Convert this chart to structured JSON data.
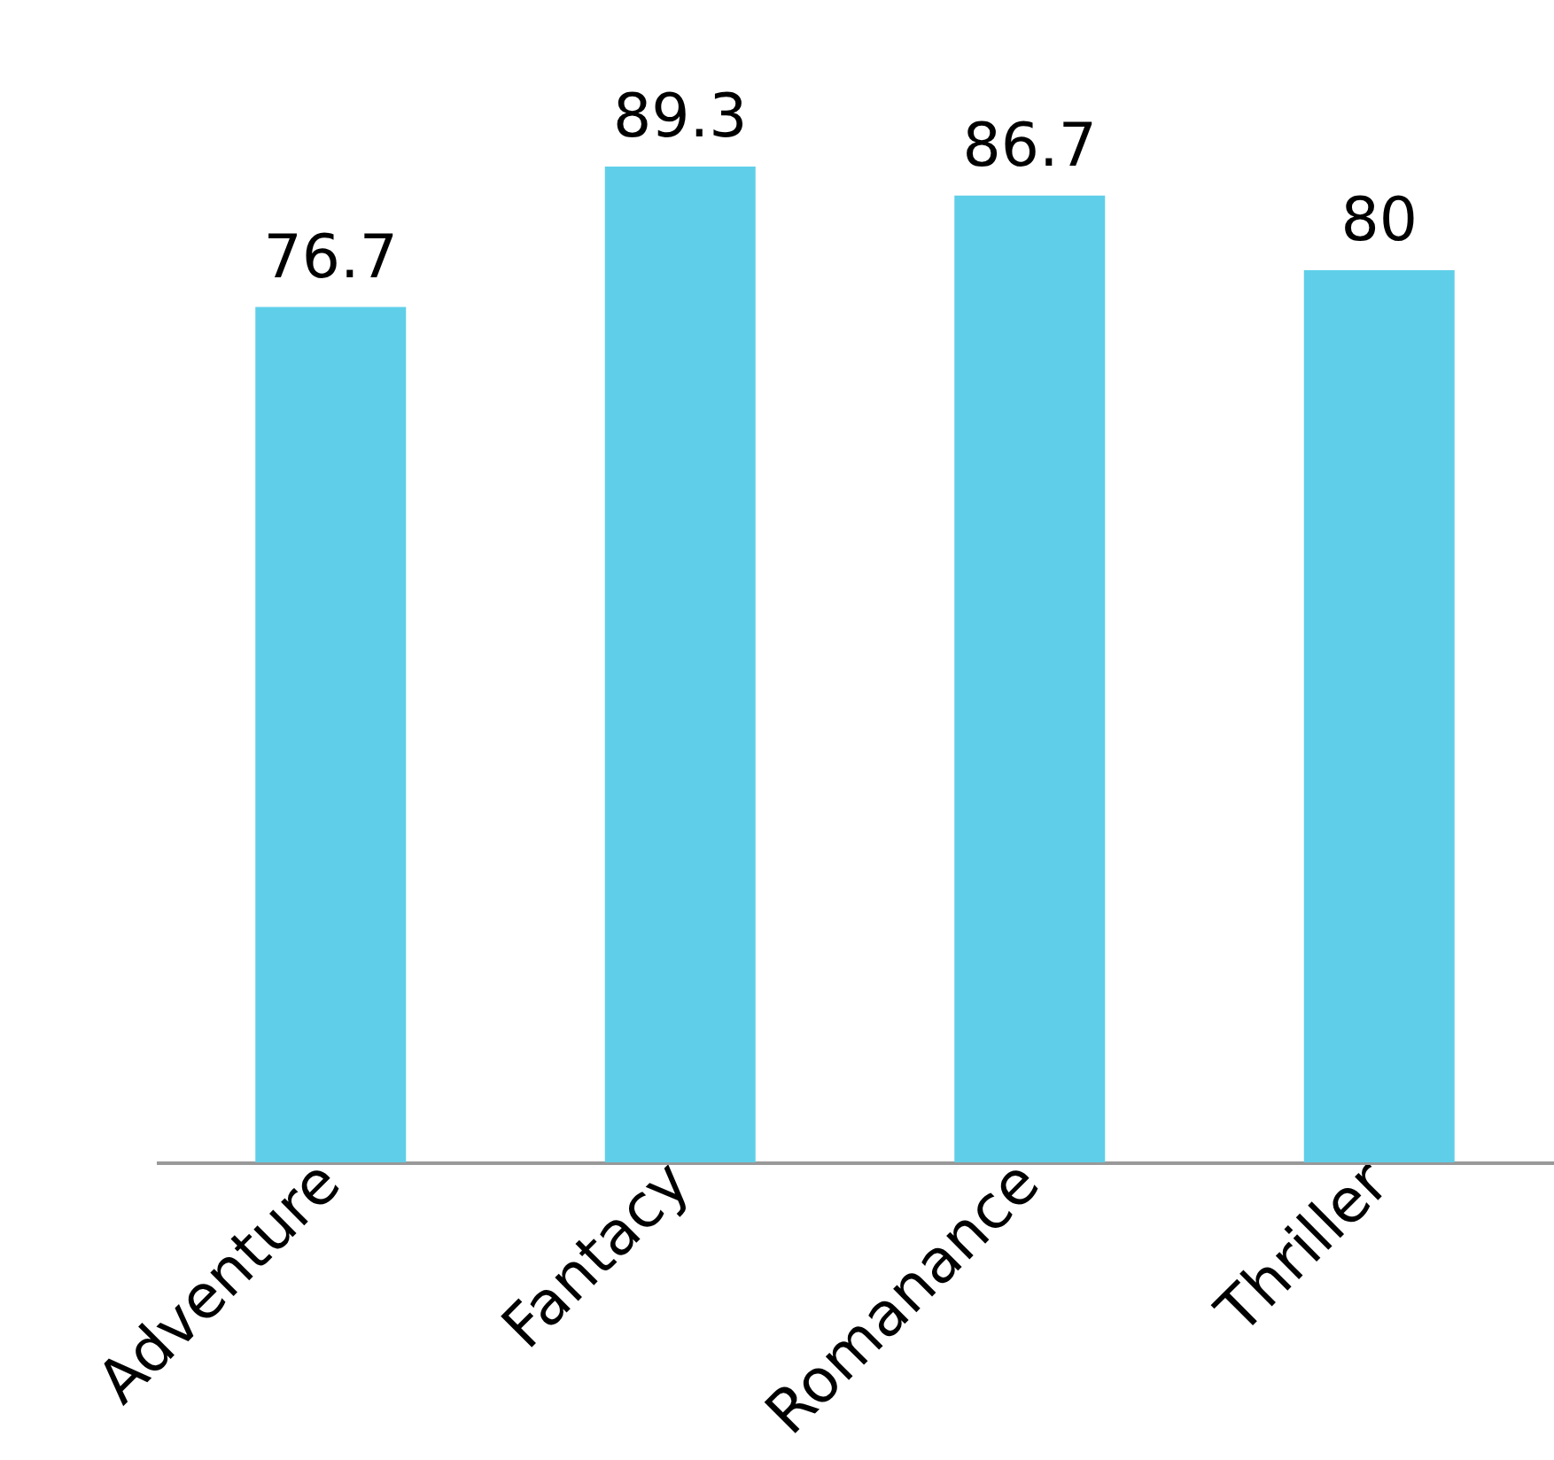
{
  "chart_data": {
    "type": "bar",
    "categories": [
      "Adventure",
      "Fantacy",
      "Romanance",
      "Thriller"
    ],
    "values": [
      76.7,
      89.3,
      86.7,
      80
    ],
    "color": "#5fcfe9",
    "data_labels": true,
    "tick_labels": "x"
  }
}
